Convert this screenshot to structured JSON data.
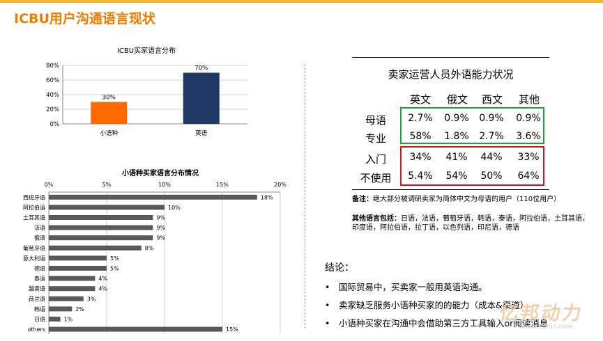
{
  "slide": {
    "title": "ICBU用户沟通语言现状"
  },
  "chart_data": [
    {
      "type": "bar",
      "title": "ICBU买家语言分布",
      "categories": [
        "小语种",
        "英语"
      ],
      "values": [
        30,
        70
      ],
      "data_labels": [
        "30%",
        "70%"
      ],
      "colors": [
        "#ff6a00",
        "#1f3864"
      ],
      "ylim": [
        0,
        80
      ],
      "yticks": [
        "0%",
        "20%",
        "40%",
        "60%",
        "80%"
      ],
      "grid": true
    },
    {
      "type": "bar",
      "orientation": "horizontal",
      "title": "小语种买家语言分布情况",
      "categories": [
        "西班牙语",
        "阿拉伯语",
        "土耳其语",
        "法语",
        "俄语",
        "葡萄牙语",
        "意大利语",
        "德语",
        "泰语",
        "越南语",
        "荷兰语",
        "韩语",
        "日语",
        "others"
      ],
      "values": [
        18,
        10,
        9,
        9,
        9,
        8,
        5,
        5,
        4,
        4,
        3,
        2,
        1,
        15
      ],
      "data_labels": [
        "18%",
        "10%",
        "9%",
        "9%",
        "9%",
        "8%",
        "5%",
        "5%",
        "4%",
        "4%",
        "3%",
        "2%",
        "1%",
        "15%"
      ],
      "color": "#595959",
      "xlim": [
        0,
        20
      ],
      "xticks": [
        "0%",
        "5%",
        "10%",
        "15%",
        "20%"
      ],
      "grid": true
    }
  ],
  "table": {
    "title": "卖家运营人员外语能力状况",
    "columns": [
      "英文",
      "俄文",
      "西文",
      "其他"
    ],
    "rows": [
      {
        "label": "母语",
        "cells": [
          "2.7%",
          "0.9%",
          "0.9%",
          "0.9%"
        ]
      },
      {
        "label": "专业",
        "cells": [
          "58%",
          "1.8%",
          "2.7%",
          "3.6%"
        ]
      },
      {
        "label": "入门",
        "cells": [
          "34%",
          "41%",
          "44%",
          "33%"
        ]
      },
      {
        "label": "不使用",
        "cells": [
          "5.4%",
          "54%",
          "50%",
          "64%"
        ]
      }
    ],
    "colors": {
      "green_box": "#1fa03c",
      "red_box": "#d8141e"
    }
  },
  "notes": {
    "remark_label": "备注：",
    "remark_text": "绝大部分被调研卖家为简体中文为母语的用户（110位用户）",
    "other_label": "其他语言包括：",
    "other_text": "日语，法语，葡萄牙语，韩语，泰语，阿拉伯语，土耳其语，印度语，阿拉伯语，拉丁语，以色列语，印尼语，德语"
  },
  "conclusion": {
    "title": "结论：",
    "points": [
      "国际贸易中，买卖家一般用英语沟通。",
      "卖家缺乏服务小语种买家的的能力（成本&渠道）",
      "小语种买家在沟通中会借助第三方工具输入or阅读消息"
    ]
  },
  "watermark": {
    "logo_text": "亿邦动力",
    "url": "www.ebrun.com"
  }
}
